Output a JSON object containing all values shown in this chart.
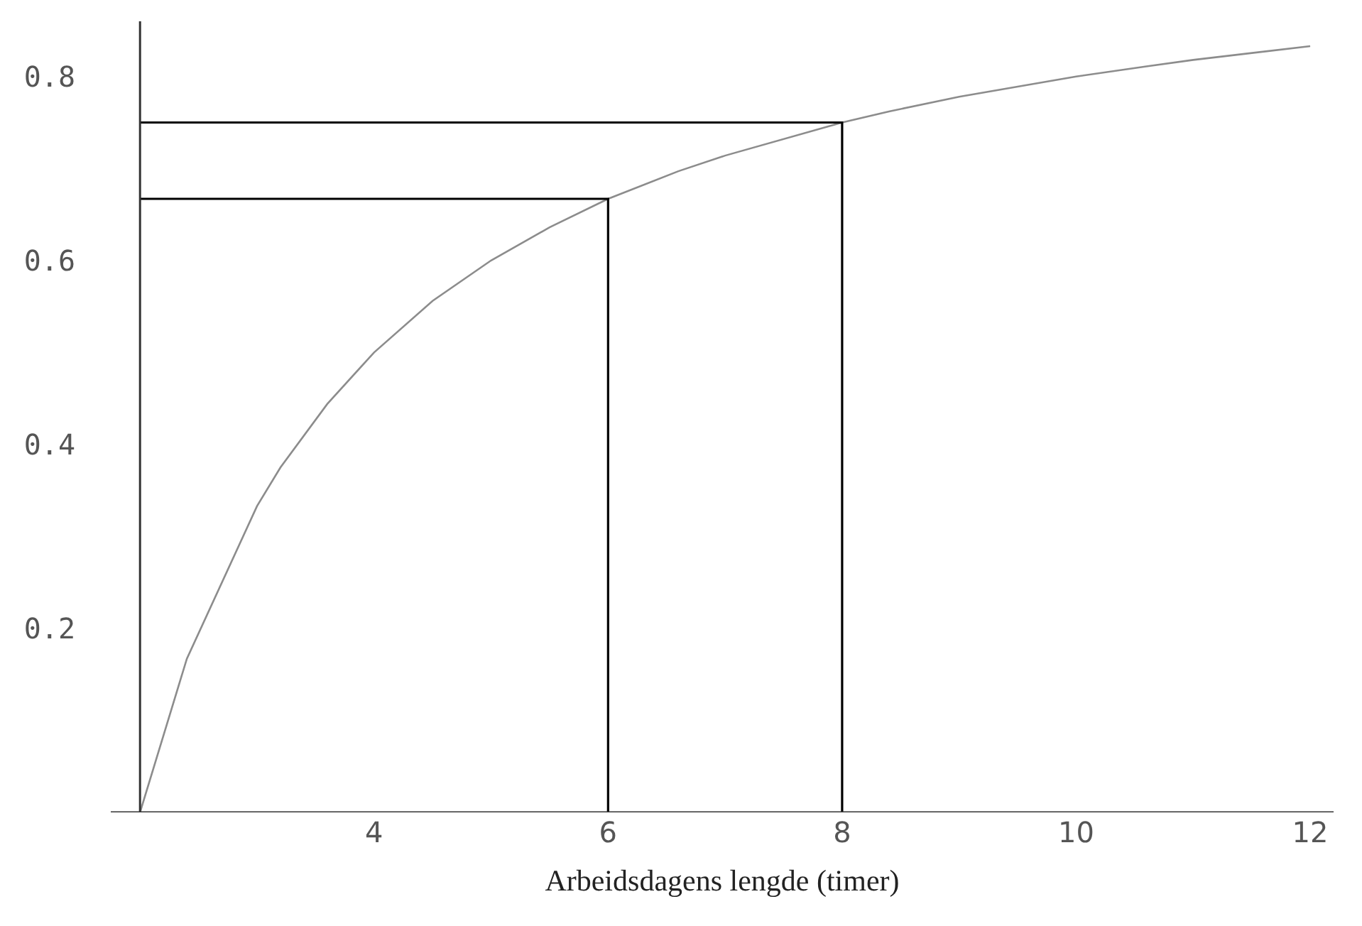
{
  "chart_data": {
    "type": "line",
    "xlabel": "Arbeidsdagens lengde (timer)",
    "xlim": [
      1.75,
      12.2
    ],
    "ylim": [
      0,
      0.86
    ],
    "xticks": [
      4,
      6,
      8,
      10,
      12
    ],
    "yticks": [
      0.2,
      0.4,
      0.6,
      0.8
    ],
    "marker": "none",
    "line_style": "solid",
    "series": [
      {
        "color": "#8c8c8c",
        "x": [
          2,
          2.4,
          3,
          3.2,
          3.6,
          4,
          4.5,
          5,
          5.5,
          6,
          6.6,
          7,
          8,
          8.4,
          9,
          10,
          10.6,
          11,
          12
        ],
        "values": [
          0,
          0.167,
          0.333,
          0.375,
          0.444,
          0.5,
          0.556,
          0.6,
          0.636,
          0.667,
          0.697,
          0.714,
          0.75,
          0.762,
          0.778,
          0.8,
          0.811,
          0.818,
          0.833
        ]
      },
      {
        "color": "#000000",
        "x": [
          2,
          6,
          6
        ],
        "values": [
          0.667,
          0.667,
          0
        ]
      },
      {
        "color": "#000000",
        "x": [
          2,
          8,
          8
        ],
        "values": [
          0.75,
          0.75,
          0
        ]
      }
    ]
  }
}
